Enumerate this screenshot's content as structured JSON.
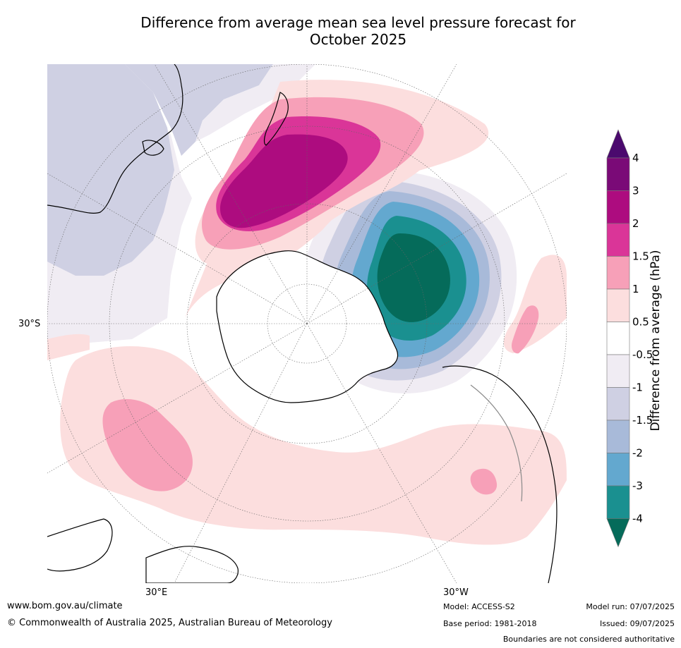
{
  "title_line1": "Difference from average mean sea level pressure forecast for",
  "title_line2": "October 2025",
  "axis_labels": {
    "lat_30s": "30°S",
    "lon_30e": "30°E",
    "lon_30w": "30°W"
  },
  "colorbar": {
    "label": "Difference from average (hPa)",
    "ticks": [
      "4",
      "3",
      "2",
      "1.5",
      "1",
      "0.5",
      "-0.5",
      "-1",
      "-1.5",
      "-2",
      "-3",
      "-4"
    ],
    "colors": [
      "#4b0a6e",
      "#7a0a77",
      "#ad0c7f",
      "#da3598",
      "#f7a0b8",
      "#fcdede",
      "#ffffff",
      "#f0ecf3",
      "#cfd0e3",
      "#a8bad9",
      "#63a8cf",
      "#1a9090",
      "#056b5a"
    ]
  },
  "footer": {
    "url": "www.bom.gov.au/climate",
    "copyright": "© Commonwealth of Australia 2025, Australian Bureau of Meteorology",
    "model": "Model: ACCESS-S2",
    "base_period": "Base period: 1981-2018",
    "model_run": "Model run: 07/07/2025",
    "issued": "Issued: 09/07/2025",
    "disclaimer": "Boundaries are not considered authoritative"
  }
}
